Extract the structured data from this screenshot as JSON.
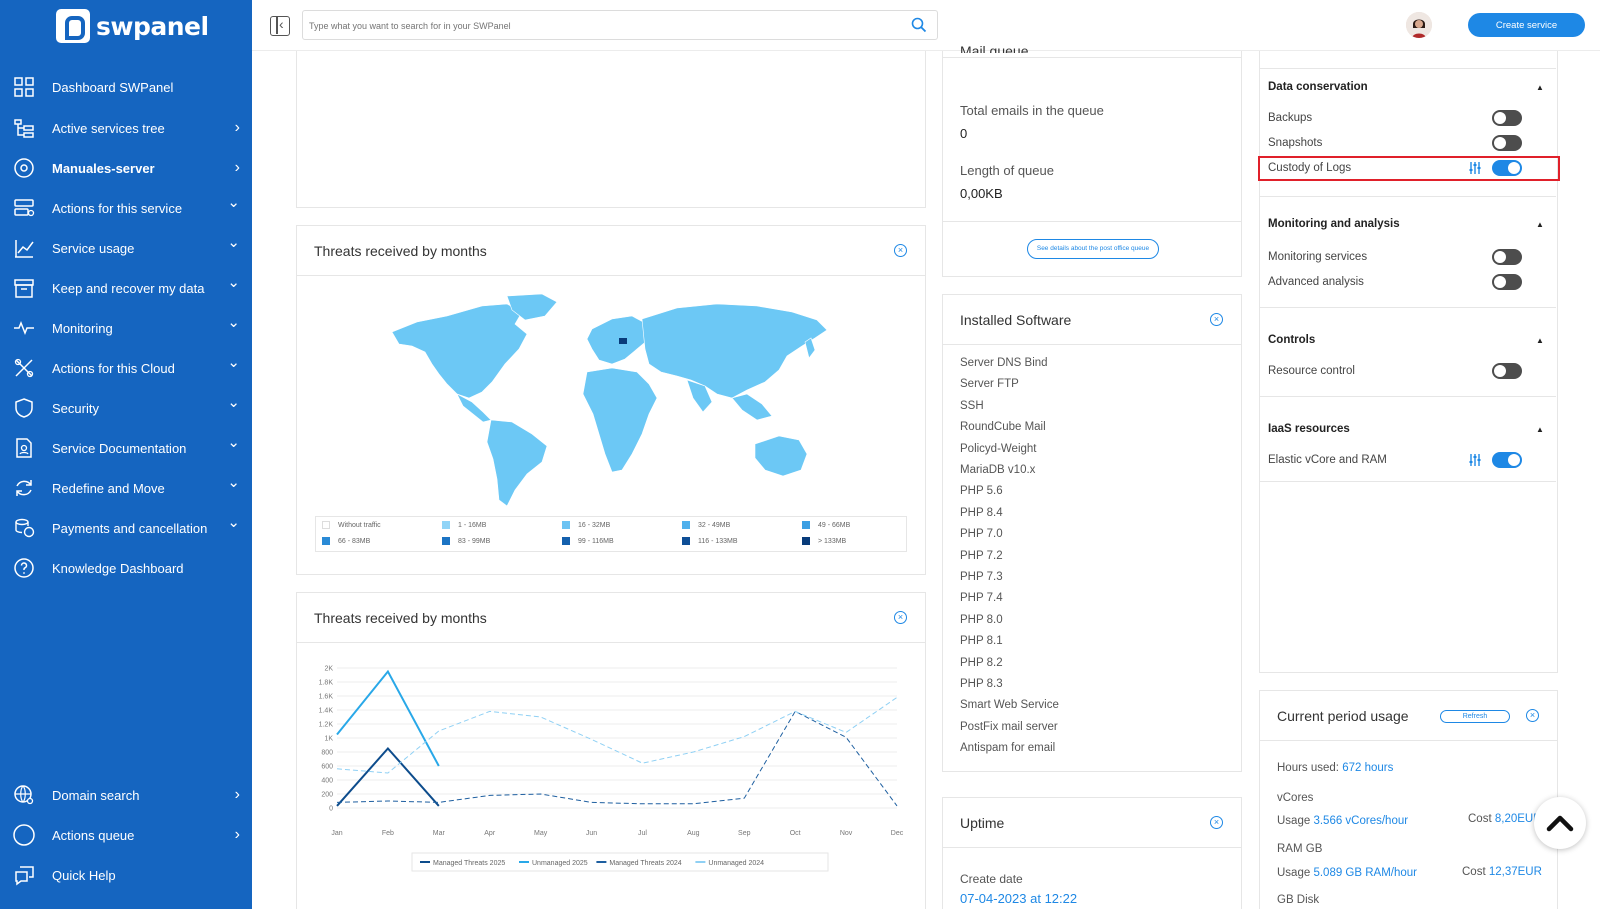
{
  "brand": {
    "name": "swpanel"
  },
  "sidebar": {
    "items": [
      {
        "label": "Dashboard SWPanel",
        "arrow": ""
      },
      {
        "label": "Active services tree",
        "arrow": "›"
      },
      {
        "label": "Manuales-server",
        "arrow": "›"
      },
      {
        "label": "Actions for this service",
        "arrow": "⌄"
      },
      {
        "label": "Service usage",
        "arrow": "⌄"
      },
      {
        "label": "Keep and recover my data",
        "arrow": "⌄"
      },
      {
        "label": "Monitoring",
        "arrow": "⌄"
      },
      {
        "label": "Actions for this Cloud",
        "arrow": "⌄"
      },
      {
        "label": "Security",
        "arrow": "⌄"
      },
      {
        "label": "Service Documentation",
        "arrow": "⌄"
      },
      {
        "label": "Redefine and Move",
        "arrow": "⌄"
      },
      {
        "label": "Payments and cancellation",
        "arrow": "⌄"
      },
      {
        "label": "Knowledge Dashboard",
        "arrow": ""
      }
    ],
    "bottom_items": [
      {
        "label": "Domain search",
        "arrow": "›"
      },
      {
        "label": "Actions queue",
        "arrow": "›"
      },
      {
        "label": "Quick Help",
        "arrow": ""
      }
    ]
  },
  "topbar": {
    "search_placeholder": "Type what you want to search for in your SWPanel",
    "create_label": "Create service"
  },
  "map_panel": {
    "title": "Threats received by months",
    "legend": [
      "Without traffic",
      "1 - 16MB",
      "16 - 32MB",
      "32 - 49MB",
      "49 - 66MB",
      "66 - 83MB",
      "83 - 99MB",
      "99 - 116MB",
      "116 - 133MB",
      "> 133MB"
    ],
    "legend_colors": [
      "#ffffff",
      "#90d4f7",
      "#6cc3f3",
      "#4fb0ec",
      "#3b9fe3",
      "#2a8ad6",
      "#1c74c4",
      "#1460ad",
      "#0e4e96",
      "#083b7a"
    ]
  },
  "line_panel": {
    "title": "Threats received by months"
  },
  "chart_data": {
    "type": "line",
    "categories": [
      "Jan",
      "Feb",
      "Mar",
      "Apr",
      "May",
      "Jun",
      "Jul",
      "Aug",
      "Sep",
      "Oct",
      "Nov",
      "Dec"
    ],
    "y_ticks": [
      "0",
      "200",
      "400",
      "600",
      "800",
      "1K",
      "1.2K",
      "1.4K",
      "1.6K",
      "1.8K",
      "2K"
    ],
    "ylim": [
      0,
      2000
    ],
    "series": [
      {
        "name": "Managed Threats 2025",
        "values": [
          30,
          850,
          30,
          null,
          null,
          null,
          null,
          null,
          null,
          null,
          null,
          null
        ],
        "color": "#0d4c8c",
        "dash": false
      },
      {
        "name": "Unmanaged 2025",
        "values": [
          1050,
          1950,
          600,
          null,
          null,
          null,
          null,
          null,
          null,
          null,
          null,
          null
        ],
        "color": "#29a8e8",
        "dash": false
      },
      {
        "name": "Managed Threats 2024",
        "values": [
          80,
          100,
          80,
          180,
          200,
          80,
          60,
          60,
          140,
          1380,
          1010,
          30
        ],
        "color": "#1e5fa0",
        "dash": true
      },
      {
        "name": "Unmanaged 2024",
        "values": [
          560,
          500,
          1100,
          1380,
          1300,
          980,
          640,
          800,
          1020,
          1380,
          1080,
          1580
        ],
        "color": "#8fd0f4",
        "dash": true
      }
    ],
    "grid": true,
    "legend_position": "bottom"
  },
  "mail_queue": {
    "title_fragment": "Mail queue",
    "total_label": "Total emails in the queue",
    "total_value": "0",
    "length_label": "Length of queue",
    "length_value": "0,00KB",
    "details_label": "See details about the post office queue"
  },
  "installed_software": {
    "title": "Installed Software",
    "items": [
      "Server DNS Bind",
      "Server FTP",
      "SSH",
      "RoundCube Mail",
      "Policyd-Weight",
      "MariaDB v10.x",
      "PHP 5.6",
      "PHP 8.4",
      "PHP 7.0",
      "PHP 7.2",
      "PHP 7.3",
      "PHP 7.4",
      "PHP 8.0",
      "PHP 8.1",
      "PHP 8.2",
      "PHP 8.3",
      "Smart Web Service",
      "PostFix mail server",
      "Antispam for email"
    ]
  },
  "uptime": {
    "title": "Uptime",
    "create_label": "Create date",
    "create_value": "07-04-2023 at 12:22"
  },
  "settings": {
    "data_conservation": {
      "title": "Data conservation",
      "items": [
        {
          "label": "Backups",
          "on": false,
          "config": false
        },
        {
          "label": "Snapshots",
          "on": false,
          "config": false
        },
        {
          "label": "Custody of Logs",
          "on": true,
          "config": true
        }
      ]
    },
    "monitoring": {
      "title": "Monitoring and analysis",
      "items": [
        {
          "label": "Monitoring services",
          "on": false,
          "config": false
        },
        {
          "label": "Advanced analysis",
          "on": false,
          "config": false
        }
      ]
    },
    "controls": {
      "title": "Controls",
      "items": [
        {
          "label": "Resource control",
          "on": false,
          "config": false
        }
      ]
    },
    "iaas": {
      "title": "IaaS resources",
      "items": [
        {
          "label": "Elastic vCore and RAM",
          "on": true,
          "config": true
        }
      ]
    }
  },
  "current_usage": {
    "title": "Current period usage",
    "refresh_label": "Refresh",
    "hours_label": "Hours used:",
    "hours_value": "672 hours",
    "vcores_label": "vCores",
    "vcores_usage_label": "Usage",
    "vcores_usage_value": "3.566 vCores/hour",
    "vcores_cost_label": "Cost",
    "vcores_cost_value": "8,20EUR",
    "ram_label": "RAM GB",
    "ram_usage_label": "Usage",
    "ram_usage_value": "5.089 GB RAM/hour",
    "ram_cost_label": "Cost",
    "ram_cost_value": "12,37EUR",
    "disk_label": "GB Disk"
  },
  "colors": {
    "sidebar": "#1565c0",
    "accent": "#1e88e5",
    "highlight": "#e0202a"
  }
}
